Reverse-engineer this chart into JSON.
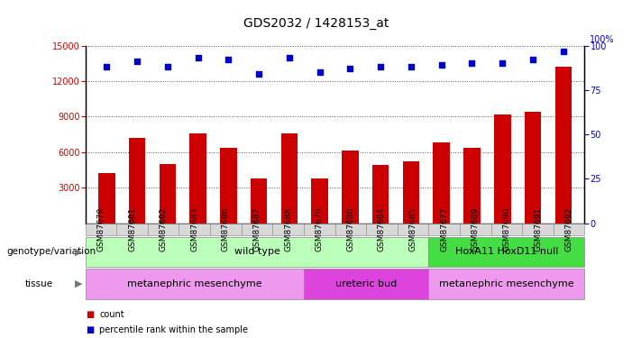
{
  "title": "GDS2032 / 1428153_at",
  "samples": [
    "GSM87678",
    "GSM87681",
    "GSM87682",
    "GSM87683",
    "GSM87686",
    "GSM87687",
    "GSM87688",
    "GSM87679",
    "GSM87680",
    "GSM87684",
    "GSM87685",
    "GSM87677",
    "GSM87689",
    "GSM87690",
    "GSM87691",
    "GSM87692"
  ],
  "counts": [
    4200,
    7200,
    5000,
    7600,
    6400,
    3800,
    7600,
    3800,
    6100,
    4900,
    5200,
    6800,
    6400,
    9200,
    9400,
    13200
  ],
  "percentile_ranks": [
    88,
    91,
    88,
    93,
    92,
    84,
    93,
    85,
    87,
    88,
    88,
    89,
    90,
    90,
    92,
    97
  ],
  "ylim_left": [
    0,
    15000
  ],
  "ylim_right": [
    0,
    100
  ],
  "yticks_left": [
    3000,
    6000,
    9000,
    12000,
    15000
  ],
  "yticks_right": [
    0,
    25,
    50,
    75,
    100
  ],
  "bar_color": "#cc0000",
  "scatter_color": "#0000cc",
  "grid_color": "#555555",
  "bg_color": "#ffffff",
  "genotype_groups": [
    {
      "label": "wild type",
      "start": 0,
      "end": 11,
      "color": "#bbffbb"
    },
    {
      "label": "HoxA11 HoxD11 null",
      "start": 11,
      "end": 16,
      "color": "#44dd44"
    }
  ],
  "tissue_groups": [
    {
      "label": "metanephric mesenchyme",
      "start": 0,
      "end": 7,
      "color": "#ee99ee"
    },
    {
      "label": "ureteric bud",
      "start": 7,
      "end": 11,
      "color": "#dd44dd"
    },
    {
      "label": "metanephric mesenchyme",
      "start": 11,
      "end": 16,
      "color": "#ee99ee"
    }
  ],
  "legend_items": [
    {
      "label": "count",
      "color": "#cc0000"
    },
    {
      "label": "percentile rank within the sample",
      "color": "#0000cc"
    }
  ],
  "title_fontsize": 10,
  "tick_fontsize": 7,
  "annotation_fontsize": 8,
  "bar_width": 0.55
}
